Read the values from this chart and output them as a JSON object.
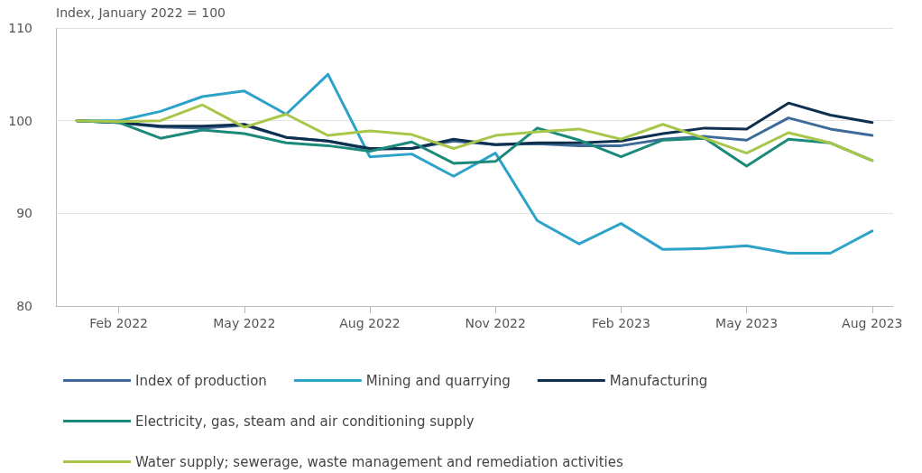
{
  "chart_data": {
    "type": "line",
    "ylabel": "Index, January 2022 = 100",
    "categories": [
      null,
      "Feb 2022",
      null,
      null,
      "May 2022",
      null,
      null,
      "Aug 2022",
      null,
      null,
      "Nov 2022",
      null,
      null,
      "Feb 2023",
      null,
      null,
      "May 2023",
      null,
      null,
      "Aug 2023"
    ],
    "series": [
      {
        "name": "Index of production",
        "color": "#3e6a9a",
        "values": [
          100,
          99.8,
          99.3,
          99.2,
          99.5,
          98.2,
          97.8,
          96.9,
          97,
          97.8,
          97.4,
          97.5,
          97.3,
          97.3,
          98,
          98.3,
          97.9,
          100.3,
          99.1,
          98.4
        ]
      },
      {
        "name": "Mining and quarrying",
        "color": "#2ea3c9",
        "values": [
          100,
          100,
          101,
          102.6,
          103.2,
          100.7,
          105,
          96.1,
          96.4,
          94,
          96.5,
          89.2,
          86.7,
          88.9,
          86.1,
          86.2,
          86.5,
          85.7,
          85.7,
          88.1
        ]
      },
      {
        "name": "Manufacturing",
        "color": "#0f2f4f",
        "values": [
          100,
          99.8,
          99.4,
          99.4,
          99.6,
          98.2,
          97.8,
          97,
          97,
          98,
          97.4,
          97.6,
          97.6,
          97.8,
          98.6,
          99.2,
          99.1,
          101.9,
          100.6,
          99.8
        ]
      },
      {
        "name": "Electricity, gas, steam and air conditioning supply",
        "color": "#1b8a7a",
        "values": [
          100,
          99.8,
          98.1,
          99,
          98.6,
          97.6,
          97.3,
          96.7,
          97.7,
          95.4,
          95.6,
          99.2,
          97.9,
          96.1,
          97.9,
          98.1,
          95.1,
          98,
          97.6,
          95.7
        ]
      },
      {
        "name": "Water supply; sewerage, waste management and remediation activities",
        "color": "#a8c64a",
        "values": [
          100,
          99.9,
          100,
          101.7,
          99.3,
          100.7,
          98.4,
          98.9,
          98.5,
          97,
          98.4,
          98.8,
          99.1,
          98,
          99.6,
          98.1,
          96.5,
          98.7,
          97.6,
          95.7
        ]
      }
    ],
    "ylim": [
      80,
      110
    ],
    "yticks": [
      80,
      90,
      100,
      110
    ],
    "grid": "y",
    "legend": "bottom",
    "marker": "none",
    "line_style": "solid"
  }
}
